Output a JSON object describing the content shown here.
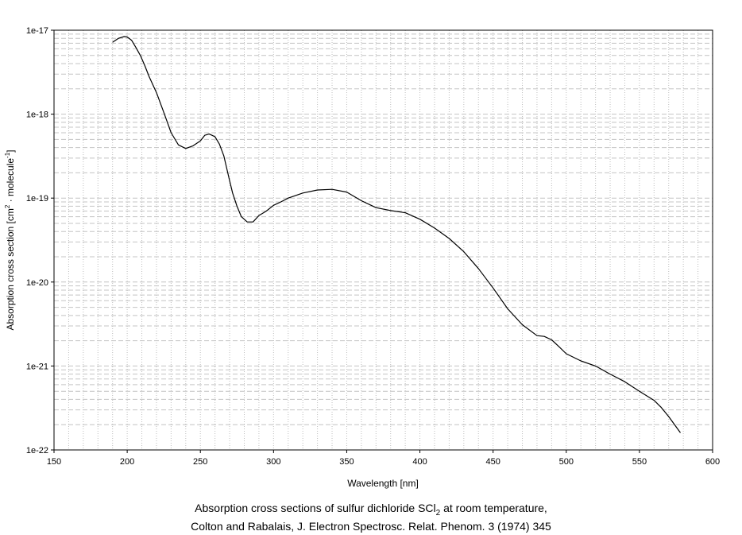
{
  "chart_data": {
    "type": "line",
    "x_scale": "linear",
    "y_scale": "log",
    "xlim": [
      150,
      600
    ],
    "ylim": [
      1e-22,
      1e-17
    ],
    "x_ticks": [
      "150",
      "200",
      "250",
      "300",
      "350",
      "400",
      "450",
      "500",
      "550",
      "600"
    ],
    "y_ticks": [
      "1e-22",
      "1e-21",
      "1e-20",
      "1e-19",
      "1e-18",
      "1e-17"
    ],
    "xlabel": "Wavelength [nm]",
    "ylabel": {
      "prefix": "Absorption cross section [cm",
      "sup1": "2",
      "middle": " · molecule",
      "sup2": "-1",
      "suffix": "]"
    },
    "grid": true,
    "legend": "none",
    "line_color": "#000000",
    "series": [
      {
        "x": [
          190,
          194,
          198,
          200,
          203,
          206,
          209,
          212,
          215,
          220,
          225,
          230,
          235,
          240,
          245,
          250,
          253,
          256,
          260,
          263,
          266,
          270,
          272,
          275,
          278,
          282,
          286,
          290,
          295,
          300,
          305,
          310,
          320,
          330,
          340,
          350,
          360,
          370,
          380,
          390,
          400,
          410,
          420,
          430,
          440,
          450,
          460,
          470,
          480,
          485,
          490,
          495,
          500,
          510,
          520,
          530,
          540,
          550,
          560,
          565,
          570,
          578
        ],
        "y": [
          7.2e-18,
          8e-18,
          8.4e-18,
          8.3e-18,
          7.6e-18,
          6.2e-18,
          5e-18,
          3.8e-18,
          2.8e-18,
          1.8e-18,
          1.05e-18,
          6e-19,
          4.3e-19,
          3.9e-19,
          4.2e-19,
          4.8e-19,
          5.6e-19,
          5.8e-19,
          5.4e-19,
          4.4e-19,
          3.2e-19,
          1.6e-19,
          1.15e-19,
          8e-20,
          6e-20,
          5.2e-20,
          5.2e-20,
          6.2e-20,
          7e-20,
          8.2e-20,
          9e-20,
          1e-19,
          1.15e-19,
          1.25e-19,
          1.27e-19,
          1.18e-19,
          9.3e-20,
          7.7e-20,
          7.1e-20,
          6.7e-20,
          5.6e-20,
          4.4e-20,
          3.3e-20,
          2.3e-20,
          1.45e-20,
          8.5e-21,
          4.8e-21,
          3.1e-21,
          2.3e-21,
          2.25e-21,
          2.05e-21,
          1.7e-21,
          1.4e-21,
          1.15e-21,
          1e-21,
          8e-22,
          6.5e-22,
          5e-22,
          3.9e-22,
          3.2e-22,
          2.5e-22,
          1.6e-22
        ]
      }
    ]
  },
  "caption": {
    "line1_prefix": "Absorption cross sections of sulfur dichloride SCl",
    "line1_sub": "2",
    "line1_suffix": " at room temperature,",
    "line2": "Colton and Rabalais,  J. Electron Spectrosc. Relat. Phenom. 3 (1974) 345"
  }
}
